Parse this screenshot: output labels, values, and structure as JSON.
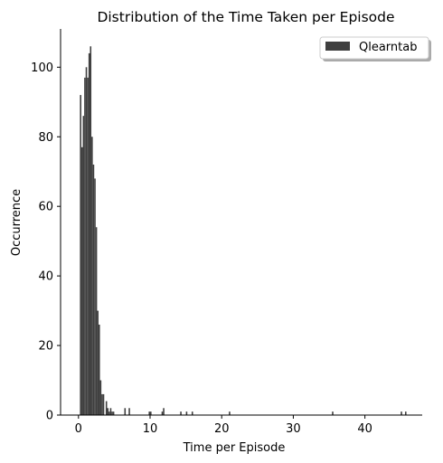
{
  "chart_data": {
    "type": "bar",
    "title": "Distribution of the Time Taken per Episode",
    "xlabel": "Time per Episode",
    "ylabel": "Occurrence",
    "xlim": [
      -2.5,
      48
    ],
    "ylim": [
      0,
      111
    ],
    "xticks": [
      0,
      10,
      20,
      30,
      40
    ],
    "yticks": [
      0,
      20,
      40,
      60,
      80,
      100
    ],
    "bin_width": 0.2,
    "legend": {
      "position": "top-right",
      "entries": [
        "Qlearntab"
      ]
    },
    "grid": false,
    "series": [
      {
        "name": "Qlearntab",
        "color": "#3f3f3f",
        "bins": [
          {
            "x": 0.2,
            "y": 92
          },
          {
            "x": 0.4,
            "y": 77
          },
          {
            "x": 0.6,
            "y": 86
          },
          {
            "x": 0.8,
            "y": 97
          },
          {
            "x": 1.0,
            "y": 100
          },
          {
            "x": 1.2,
            "y": 97
          },
          {
            "x": 1.4,
            "y": 104
          },
          {
            "x": 1.6,
            "y": 106
          },
          {
            "x": 1.8,
            "y": 80
          },
          {
            "x": 2.0,
            "y": 72
          },
          {
            "x": 2.2,
            "y": 68
          },
          {
            "x": 2.4,
            "y": 54
          },
          {
            "x": 2.6,
            "y": 30
          },
          {
            "x": 2.8,
            "y": 26
          },
          {
            "x": 3.0,
            "y": 10
          },
          {
            "x": 3.2,
            "y": 6
          },
          {
            "x": 3.4,
            "y": 6
          },
          {
            "x": 3.8,
            "y": 4
          },
          {
            "x": 4.0,
            "y": 2
          },
          {
            "x": 4.2,
            "y": 1
          },
          {
            "x": 4.4,
            "y": 2
          },
          {
            "x": 4.6,
            "y": 1
          },
          {
            "x": 4.8,
            "y": 1
          },
          {
            "x": 6.4,
            "y": 2
          },
          {
            "x": 7.0,
            "y": 2
          },
          {
            "x": 9.8,
            "y": 1
          },
          {
            "x": 10.0,
            "y": 1
          },
          {
            "x": 11.6,
            "y": 1
          },
          {
            "x": 11.8,
            "y": 2
          },
          {
            "x": 14.2,
            "y": 1
          },
          {
            "x": 15.0,
            "y": 1
          },
          {
            "x": 15.8,
            "y": 1
          },
          {
            "x": 21.0,
            "y": 1
          },
          {
            "x": 35.4,
            "y": 1
          },
          {
            "x": 45.0,
            "y": 1
          },
          {
            "x": 45.6,
            "y": 1
          }
        ]
      }
    ]
  }
}
